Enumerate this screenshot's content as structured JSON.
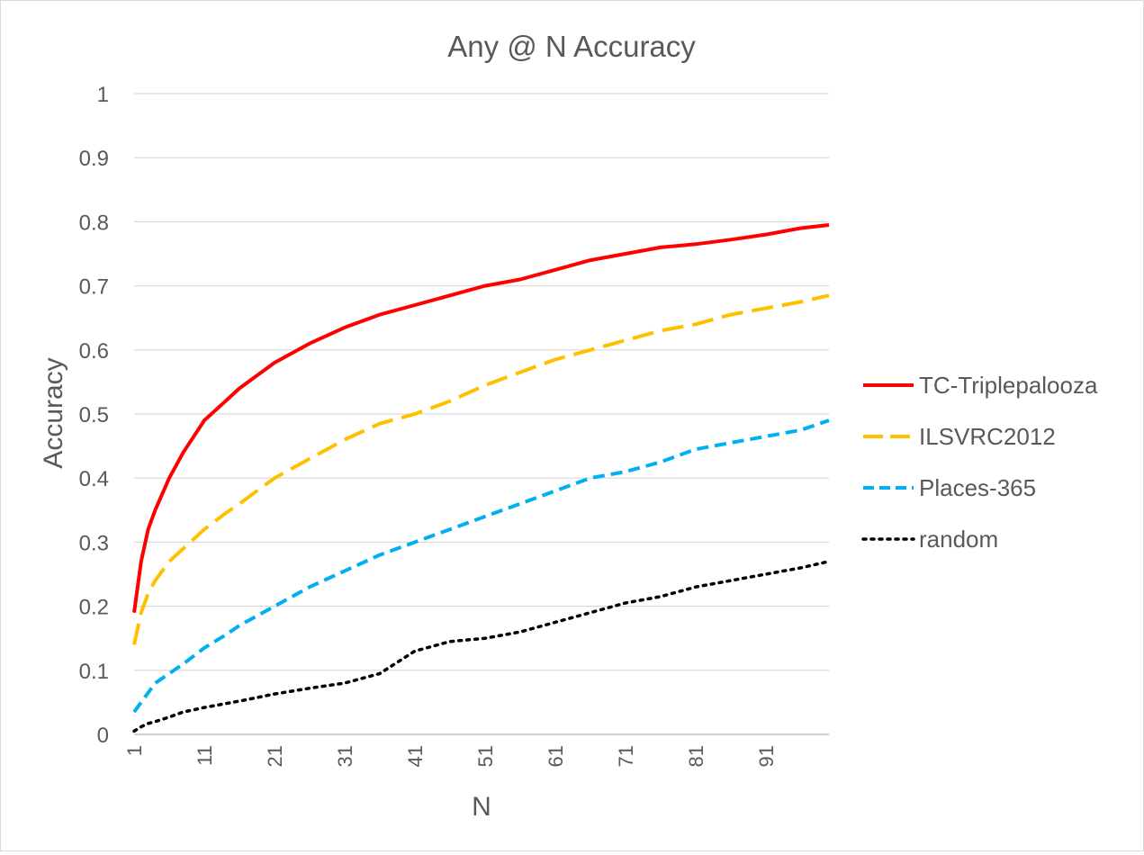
{
  "chart_data": {
    "type": "line",
    "title": "Any @ N Accuracy",
    "xlabel": "N",
    "ylabel": "Accuracy",
    "xlim": [
      1,
      100
    ],
    "ylim": [
      0,
      1
    ],
    "x_ticks": [
      1,
      11,
      21,
      31,
      41,
      51,
      61,
      71,
      81,
      91
    ],
    "y_ticks": [
      0,
      0.1,
      0.2,
      0.3,
      0.4,
      0.5,
      0.6,
      0.7,
      0.8,
      0.9,
      1
    ],
    "y_tick_labels": [
      "0",
      "0.1",
      "0.2",
      "0.3",
      "0.4",
      "0.5",
      "0.6",
      "0.7",
      "0.8",
      "0.9",
      "1"
    ],
    "grid": true,
    "legend_position": "right",
    "x": [
      1,
      2,
      3,
      4,
      6,
      8,
      11,
      14,
      16,
      21,
      26,
      31,
      36,
      41,
      46,
      51,
      56,
      61,
      66,
      71,
      76,
      81,
      86,
      91,
      96,
      100
    ],
    "series": [
      {
        "name": "TC-Triplepalooza",
        "color": "#ff0000",
        "style": "solid",
        "values": [
          0.19,
          0.27,
          0.32,
          0.35,
          0.4,
          0.44,
          0.49,
          0.52,
          0.54,
          0.58,
          0.61,
          0.635,
          0.655,
          0.67,
          0.685,
          0.7,
          0.71,
          0.725,
          0.74,
          0.75,
          0.76,
          0.765,
          0.772,
          0.78,
          0.79,
          0.795
        ]
      },
      {
        "name": "ILSVRC2012",
        "color": "#ffc000",
        "style": "long-dash",
        "values": [
          0.14,
          0.19,
          0.22,
          0.24,
          0.27,
          0.29,
          0.32,
          0.345,
          0.36,
          0.4,
          0.43,
          0.46,
          0.485,
          0.5,
          0.52,
          0.545,
          0.565,
          0.585,
          0.6,
          0.615,
          0.63,
          0.64,
          0.655,
          0.665,
          0.675,
          0.685
        ]
      },
      {
        "name": "Places-365",
        "color": "#00b0f0",
        "style": "dash",
        "values": [
          0.035,
          0.05,
          0.065,
          0.08,
          0.095,
          0.11,
          0.135,
          0.155,
          0.17,
          0.2,
          0.23,
          0.255,
          0.28,
          0.3,
          0.32,
          0.34,
          0.36,
          0.38,
          0.4,
          0.41,
          0.425,
          0.445,
          0.455,
          0.465,
          0.475,
          0.49
        ]
      },
      {
        "name": "random",
        "color": "#000000",
        "style": "dot",
        "values": [
          0.005,
          0.012,
          0.017,
          0.02,
          0.027,
          0.035,
          0.042,
          0.048,
          0.052,
          0.063,
          0.072,
          0.08,
          0.095,
          0.13,
          0.145,
          0.15,
          0.16,
          0.175,
          0.19,
          0.205,
          0.215,
          0.23,
          0.24,
          0.25,
          0.26,
          0.27
        ]
      }
    ]
  }
}
